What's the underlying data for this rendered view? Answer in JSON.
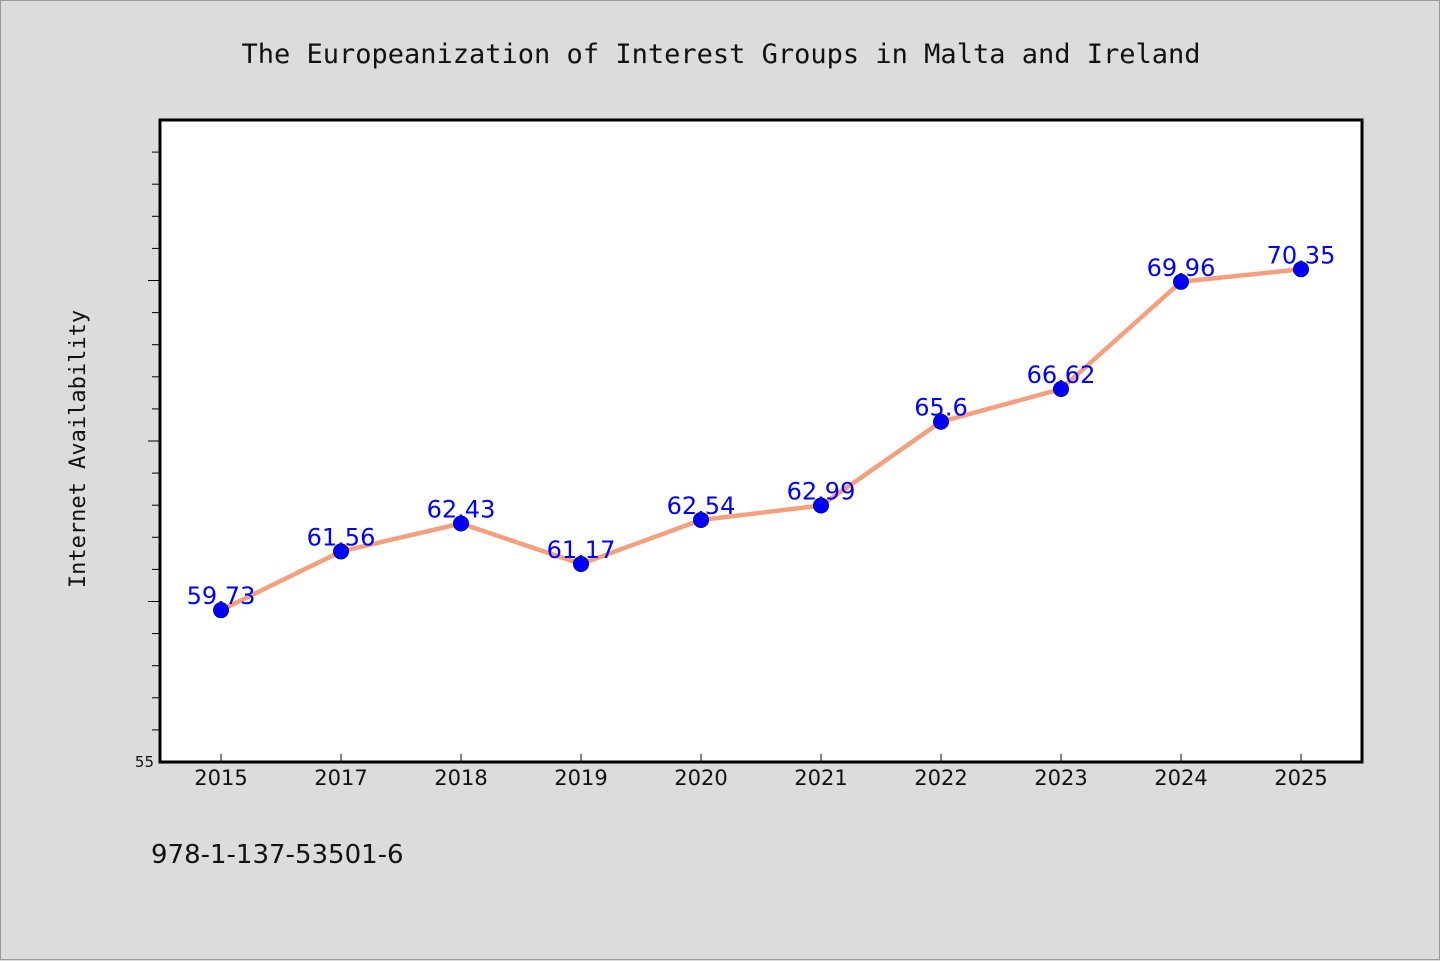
{
  "chart_data": {
    "type": "line",
    "title": "The Europeanization of Interest Groups in Malta and Ireland",
    "xlabel": "",
    "ylabel": "Internet Availability",
    "categories": [
      "2015",
      "2017",
      "2018",
      "2019",
      "2020",
      "2021",
      "2022",
      "2023",
      "2024",
      "2025"
    ],
    "series": [
      {
        "values": [
          59.73,
          61.56,
          62.43,
          61.17,
          62.54,
          62.99,
          65.6,
          66.62,
          69.96,
          70.35
        ],
        "labels": [
          "59.73",
          "61.56",
          "62.43",
          "61.17",
          "62.54",
          "62.99",
          "65.6",
          "66.62",
          "69.96",
          "70.35"
        ],
        "line_color": "#f4a07e",
        "marker_color": "#0000ff"
      }
    ],
    "ylim": [
      55,
      75
    ],
    "ytick_labels": [
      "55"
    ],
    "grid": false,
    "legend": "none"
  },
  "footer_text": "978-1-137-53501-6"
}
